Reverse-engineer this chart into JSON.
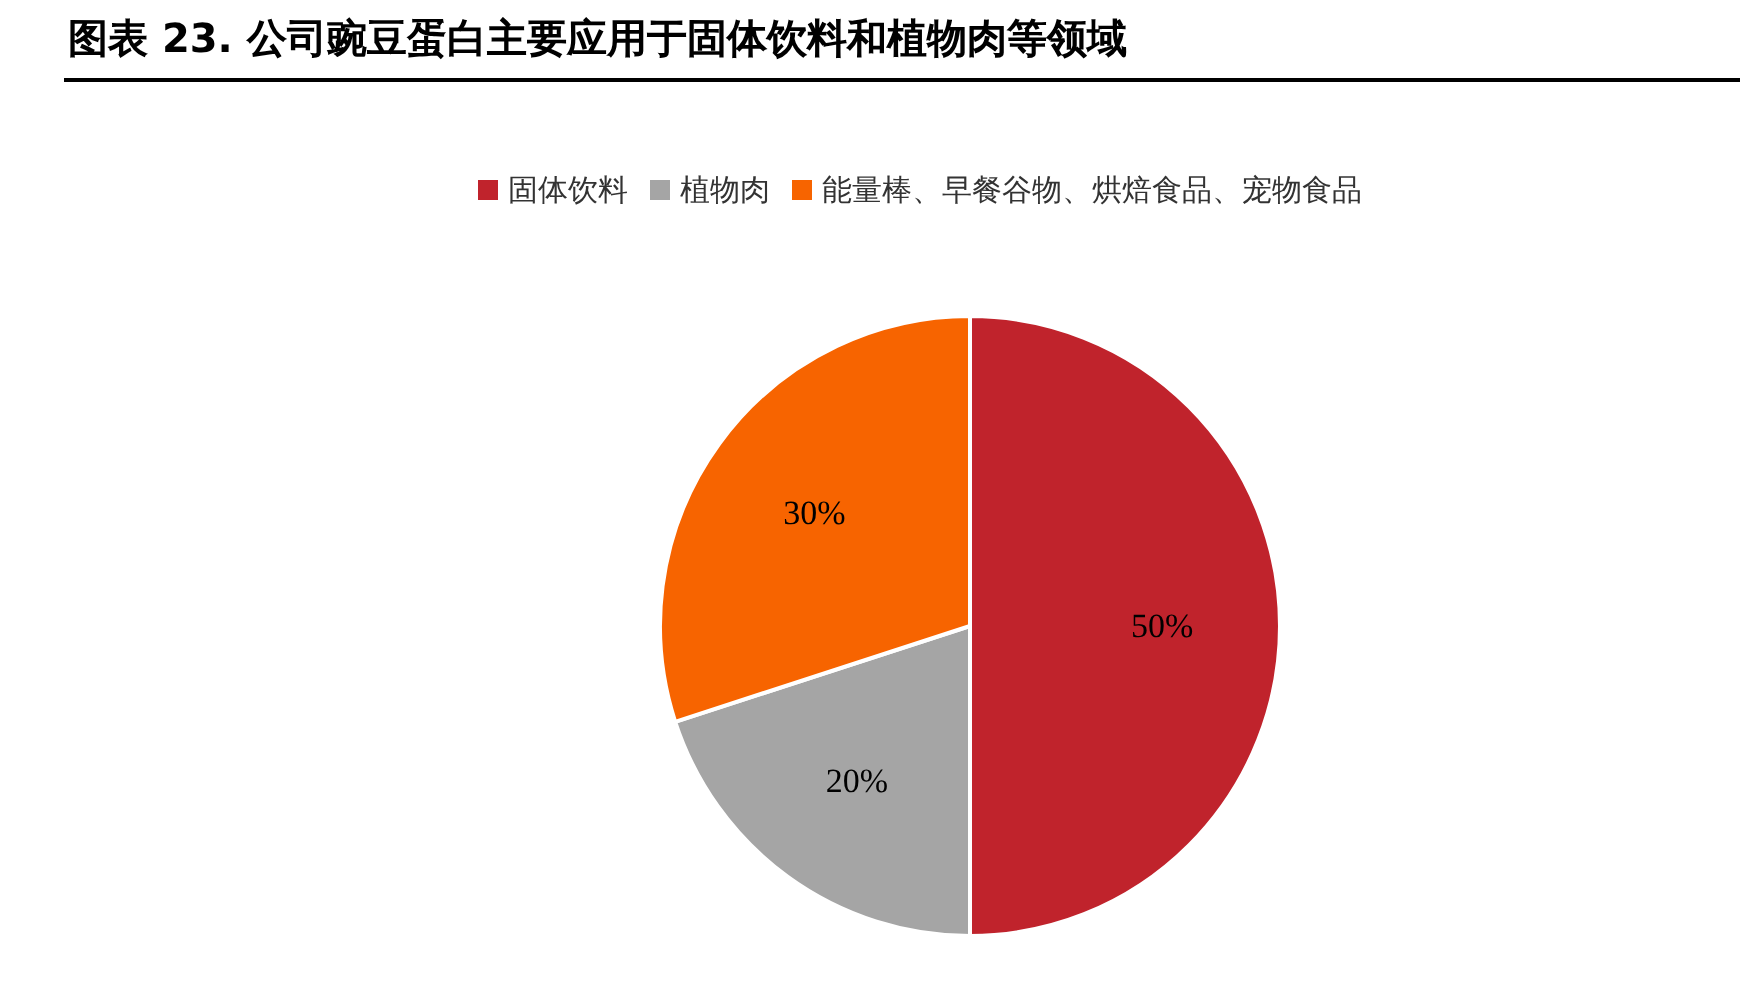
{
  "chart_data": {
    "type": "pie",
    "title": "图表 23. 公司豌豆蛋白主要应用于固体饮料和植物肉等领域",
    "categories": [
      "固体饮料",
      "植物肉",
      "能量棒、早餐谷物、烘焙食品、宠物食品"
    ],
    "values": [
      50,
      20,
      30
    ],
    "colors": [
      "#c0232c",
      "#a5a5a5",
      "#f76400"
    ],
    "value_labels": [
      "50%",
      "20%",
      "30%"
    ],
    "legend": "top"
  }
}
